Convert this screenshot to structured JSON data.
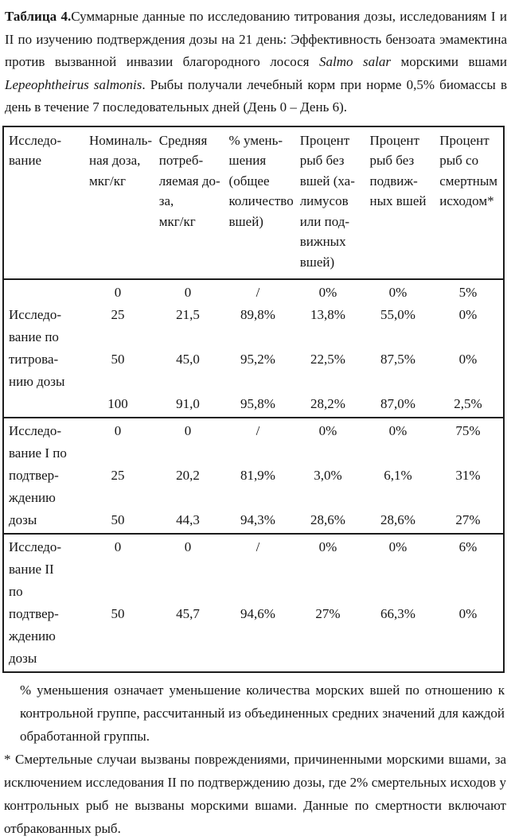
{
  "colors": {
    "background": "#ffffff",
    "text": "#161616",
    "table_border": "#1c1c1c"
  },
  "caption": {
    "segments": [
      {
        "text": "Таблица 4.",
        "style": "bold"
      },
      {
        "text": "Суммарные данные по исследованию титрования дозы, исследованиям I и II  по изучению подтверждения дозы на 21 день: Эффективность бензоата эмамектина против вызванной инвазии благородного лосося ",
        "style": "normal"
      },
      {
        "text": "Salmo salar",
        "style": "italic"
      },
      {
        "text": " морскими вшами ",
        "style": "normal"
      },
      {
        "text": "Lepeophtheirus salmonis",
        "style": "italic"
      },
      {
        "text": ". Рыбы получали лечебный корм при норме 0,5% биомассы в день в течение 7 последовательных дней (День 0 – День 6).",
        "style": "normal"
      }
    ]
  },
  "table": {
    "columns": [
      {
        "label": "Исследование",
        "lines": [
          "Исследо-",
          "вание"
        ]
      },
      {
        "label": "Номинальная доза, мкг/кг",
        "lines": [
          "Номиналь-",
          "ная доза,",
          "мкг/кг"
        ]
      },
      {
        "label": "Средняя потребляемая доза, мкг/кг",
        "lines": [
          "Средняя",
          "потреб-",
          "ляемая до-",
          "за,",
          "мкг/кг"
        ]
      },
      {
        "label": "% уменьшения (общее количество вшей)",
        "lines": [
          "% умень-",
          "шения",
          "(общее",
          "количество",
          "вшей)"
        ]
      },
      {
        "label": "Процент рыб без вшей (халимусов или подвижных вшей)",
        "lines": [
          "Процент",
          "рыб без",
          "вшей (ха-",
          "лимусов",
          "или под-",
          "вижных",
          "вшей)"
        ]
      },
      {
        "label": "Процент рыб без подвижных вшей",
        "lines": [
          "Процент",
          "рыб без",
          "подвиж-",
          "ных вшей"
        ]
      },
      {
        "label": "Процент рыб со смертным исходом*",
        "lines": [
          "Процент",
          "рыб со",
          "смертным",
          "исходом*"
        ]
      }
    ],
    "sections": [
      {
        "label": "Исследование по титрованию дозы",
        "lines": [
          [
            "",
            "0",
            "0",
            "/",
            "0%",
            "0%",
            "5%"
          ],
          [
            "Исследо-",
            "25",
            "21,5",
            "89,8%",
            "13,8%",
            "55,0%",
            "0%"
          ],
          [
            "вание по",
            "",
            "",
            "",
            "",
            "",
            ""
          ],
          [
            "титрова-",
            "50",
            "45,0",
            "95,2%",
            "22,5%",
            "87,5%",
            "0%"
          ],
          [
            "нию дозы",
            "",
            "",
            "",
            "",
            "",
            ""
          ],
          [
            "",
            "100",
            "91,0",
            "95,8%",
            "28,2%",
            "87,0%",
            "2,5%"
          ]
        ]
      },
      {
        "label": "Исследование I по подтверждению дозы",
        "lines": [
          [
            "Исследо-",
            "0",
            "0",
            "/",
            "0%",
            "0%",
            "75%"
          ],
          [
            "вание I по",
            "",
            "",
            "",
            "",
            "",
            ""
          ],
          [
            "подтвер-",
            "25",
            "20,2",
            "81,9%",
            "3,0%",
            "6,1%",
            "31%"
          ],
          [
            "ждению",
            "",
            "",
            "",
            "",
            "",
            ""
          ],
          [
            "дозы",
            "50",
            "44,3",
            "94,3%",
            "28,6%",
            "28,6%",
            "27%"
          ]
        ]
      },
      {
        "label": "Исследование II по подтверждению дозы",
        "lines": [
          [
            "Исследо-",
            "0",
            "0",
            "/",
            "0%",
            "0%",
            "6%"
          ],
          [
            "вание II",
            "",
            "",
            "",
            "",
            "",
            ""
          ],
          [
            "по",
            "",
            "",
            "",
            "",
            "",
            ""
          ],
          [
            "подтвер-",
            "50",
            "45,7",
            "94,6%",
            "27%",
            "66,3%",
            "0%"
          ],
          [
            "ждению",
            "",
            "",
            "",
            "",
            "",
            ""
          ],
          [
            "дозы",
            "",
            "",
            "",
            "",
            "",
            ""
          ]
        ]
      }
    ]
  },
  "footnotes": {
    "reduction": "% уменьшения означает уменьшение количества морских вшей по отношению к контрольной группе, рассчитанный из объединенных средних значений для каждой обработанной группы.",
    "mortality": "* Смертельные случаи вызваны повреждениями, причиненными морскими вшами, за исключением исследования II по подтверждению дозы, где 2% смертельных исходов у контрольных рыб не вызваны морскими вшами. Данные по смертности включают отбракованных рыб."
  }
}
